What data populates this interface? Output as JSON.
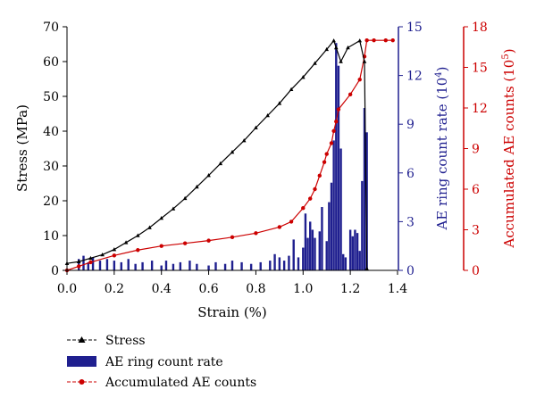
{
  "chart_data": {
    "type": "line",
    "xlabel": "Strain (%)",
    "xlim": [
      0.0,
      1.4
    ],
    "xticks": [
      "0.0",
      "0.2",
      "0.4",
      "0.6",
      "0.8",
      "1.0",
      "1.2",
      "1.4"
    ],
    "axes": {
      "stress": {
        "label": "Stress (MPa)",
        "lim": [
          0,
          70
        ],
        "ticks": [
          "0",
          "10",
          "20",
          "30",
          "40",
          "50",
          "60",
          "70"
        ],
        "color": "#000000"
      },
      "ring_rate": {
        "label_main": "AE ring count rate (10",
        "label_exp": "4",
        "label_close": ")",
        "lim": [
          0,
          15
        ],
        "ticks": [
          "0",
          "3",
          "6",
          "9",
          "12",
          "15"
        ],
        "color": "#1f1f8f"
      },
      "accumulated": {
        "label_main": "Accumulated AE counts (10",
        "label_exp": "5",
        "label_close": ")",
        "lim": [
          0,
          18
        ],
        "ticks": [
          "0",
          "3",
          "6",
          "9",
          "12",
          "15",
          "18"
        ],
        "color": "#cc0000"
      }
    },
    "series": [
      {
        "name": "Stress",
        "axis": "stress",
        "color": "#000000",
        "marker": "triangle",
        "x": [
          0.0,
          0.05,
          0.1,
          0.15,
          0.2,
          0.25,
          0.3,
          0.35,
          0.4,
          0.45,
          0.5,
          0.55,
          0.6,
          0.65,
          0.7,
          0.75,
          0.8,
          0.85,
          0.9,
          0.95,
          1.0,
          1.05,
          1.1,
          1.13,
          1.14,
          1.16,
          1.19,
          1.24,
          1.26,
          1.27
        ],
        "y": [
          2.0,
          2.5,
          3.5,
          4.5,
          6.0,
          8.0,
          10.0,
          12.3,
          15.0,
          17.7,
          20.7,
          24.0,
          27.3,
          30.7,
          34.0,
          37.3,
          41.0,
          44.5,
          48.0,
          52.0,
          55.5,
          59.5,
          63.5,
          66.0,
          64.0,
          60.0,
          64.0,
          66.0,
          60.0,
          0.5
        ]
      },
      {
        "name": "AE ring count rate",
        "axis": "ring_rate",
        "color": "#1f1f8f",
        "type": "bar",
        "x": [
          0.05,
          0.07,
          0.09,
          0.11,
          0.14,
          0.17,
          0.2,
          0.23,
          0.26,
          0.29,
          0.32,
          0.36,
          0.4,
          0.42,
          0.45,
          0.48,
          0.52,
          0.55,
          0.6,
          0.63,
          0.67,
          0.7,
          0.74,
          0.78,
          0.82,
          0.86,
          0.88,
          0.9,
          0.92,
          0.94,
          0.96,
          0.98,
          1.0,
          1.01,
          1.02,
          1.03,
          1.04,
          1.05,
          1.07,
          1.08,
          1.1,
          1.11,
          1.12,
          1.13,
          1.14,
          1.15,
          1.16,
          1.17,
          1.18,
          1.2,
          1.21,
          1.22,
          1.23,
          1.24,
          1.25,
          1.26,
          1.27
        ],
        "y": [
          0.7,
          0.9,
          0.5,
          0.8,
          0.6,
          0.7,
          0.6,
          0.5,
          0.7,
          0.4,
          0.5,
          0.6,
          0.3,
          0.6,
          0.4,
          0.5,
          0.6,
          0.4,
          0.3,
          0.5,
          0.4,
          0.6,
          0.5,
          0.4,
          0.5,
          0.6,
          1.0,
          0.8,
          0.6,
          0.9,
          1.9,
          0.8,
          1.4,
          3.5,
          2.0,
          3.0,
          2.5,
          2.0,
          2.4,
          3.9,
          1.8,
          4.2,
          5.4,
          8.0,
          14.0,
          12.6,
          7.5,
          1.0,
          0.8,
          2.5,
          2.1,
          2.5,
          2.3,
          1.2,
          5.5,
          10.0,
          8.5
        ]
      },
      {
        "name": "Accumulated AE counts",
        "axis": "accumulated",
        "color": "#cc0000",
        "marker": "circle",
        "x": [
          0.0,
          0.05,
          0.1,
          0.2,
          0.3,
          0.4,
          0.5,
          0.6,
          0.7,
          0.8,
          0.9,
          0.95,
          1.0,
          1.03,
          1.05,
          1.07,
          1.09,
          1.1,
          1.12,
          1.13,
          1.14,
          1.15,
          1.2,
          1.24,
          1.26,
          1.27,
          1.3,
          1.35,
          1.38
        ],
        "y": [
          0.0,
          0.3,
          0.6,
          1.1,
          1.5,
          1.8,
          2.0,
          2.2,
          2.45,
          2.75,
          3.2,
          3.6,
          4.6,
          5.3,
          6.0,
          7.0,
          8.0,
          8.6,
          9.4,
          10.3,
          11.0,
          11.9,
          13.0,
          14.1,
          15.8,
          17.0,
          17.0,
          17.0,
          17.0
        ]
      }
    ],
    "legend": {
      "position": "bottom-left",
      "items": [
        "Stress",
        "AE ring count rate",
        "Accumulated AE counts"
      ]
    }
  }
}
